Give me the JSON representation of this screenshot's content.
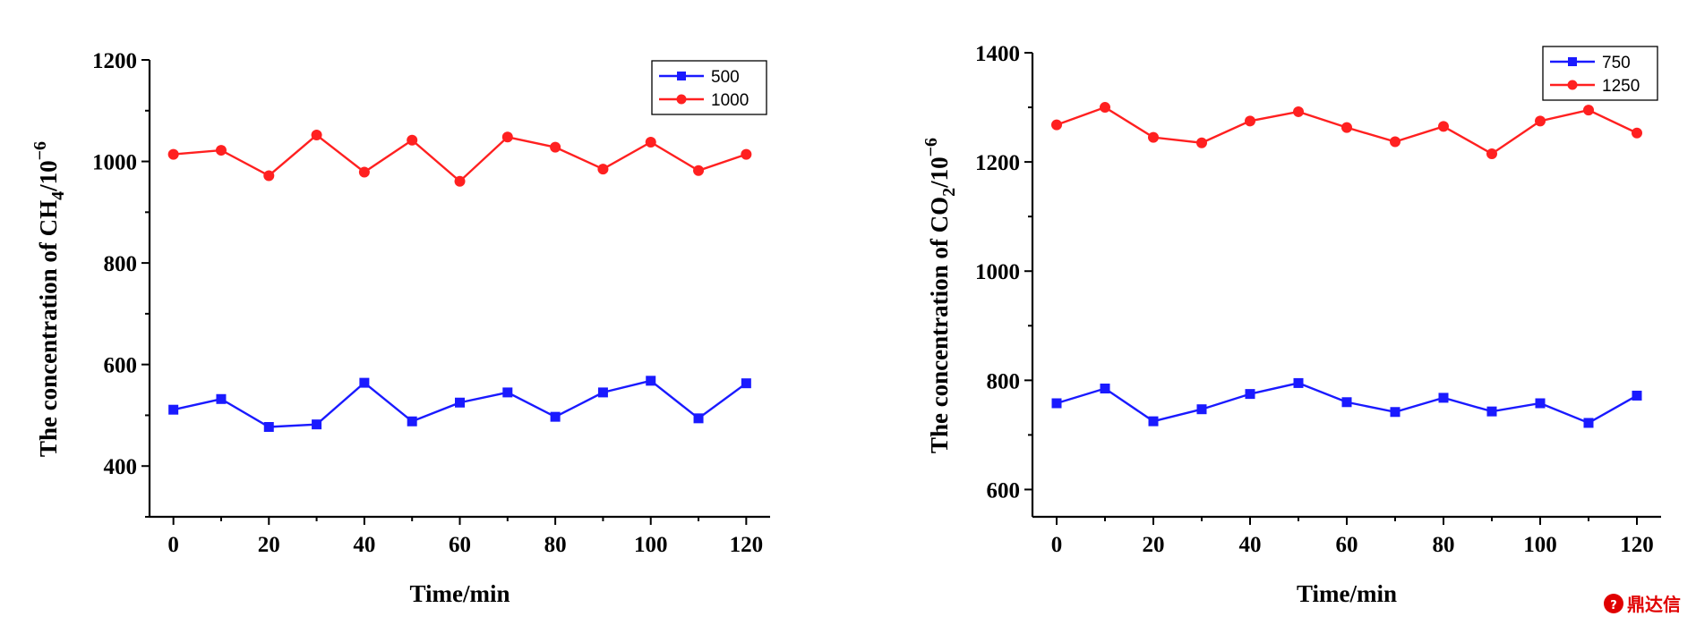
{
  "chart_data": [
    {
      "type": "line",
      "xlabel": "Time/min",
      "ylabel": {
        "pre": "The concentration of CH",
        "sub": "4",
        "mid": "/10",
        "sup": "−6"
      },
      "xlim": [
        -5,
        125
      ],
      "ylim": [
        300,
        1200
      ],
      "xticks": [
        0,
        20,
        40,
        60,
        80,
        100,
        120
      ],
      "yticks": [
        400,
        600,
        800,
        1000,
        1200
      ],
      "grid": false,
      "legend": "top-right",
      "x": [
        0,
        10,
        20,
        30,
        40,
        50,
        60,
        70,
        80,
        90,
        100,
        110,
        120
      ],
      "series": [
        {
          "name": "500",
          "color": "#1a1aff",
          "marker": "square",
          "values": [
            511,
            532,
            477,
            482,
            564,
            488,
            525,
            545,
            497,
            545,
            568,
            494,
            563
          ]
        },
        {
          "name": "1000",
          "color": "#ff2020",
          "marker": "circle",
          "values": [
            1014,
            1022,
            972,
            1052,
            979,
            1042,
            961,
            1048,
            1028,
            985,
            1038,
            982,
            1014
          ]
        }
      ]
    },
    {
      "type": "line",
      "xlabel": "Time/min",
      "ylabel": {
        "pre": "The concentration of CO",
        "sub": "2",
        "mid": "/10",
        "sup": "−6"
      },
      "xlim": [
        -5,
        125
      ],
      "ylim": [
        550,
        1400
      ],
      "xticks": [
        0,
        20,
        40,
        60,
        80,
        100,
        120
      ],
      "yticks": [
        600,
        800,
        1000,
        1200,
        1400
      ],
      "grid": false,
      "legend": "top-right",
      "x": [
        0,
        10,
        20,
        30,
        40,
        50,
        60,
        70,
        80,
        90,
        100,
        110,
        120
      ],
      "series": [
        {
          "name": "750",
          "color": "#1a1aff",
          "marker": "square",
          "values": [
            758,
            785,
            725,
            747,
            775,
            795,
            760,
            742,
            768,
            743,
            758,
            722,
            772
          ]
        },
        {
          "name": "1250",
          "color": "#ff2020",
          "marker": "circle",
          "values": [
            1268,
            1300,
            1245,
            1235,
            1275,
            1292,
            1263,
            1237,
            1265,
            1215,
            1275,
            1295,
            1253
          ]
        }
      ]
    }
  ],
  "watermark": {
    "text": "鼎达信",
    "color": "#e00000"
  }
}
